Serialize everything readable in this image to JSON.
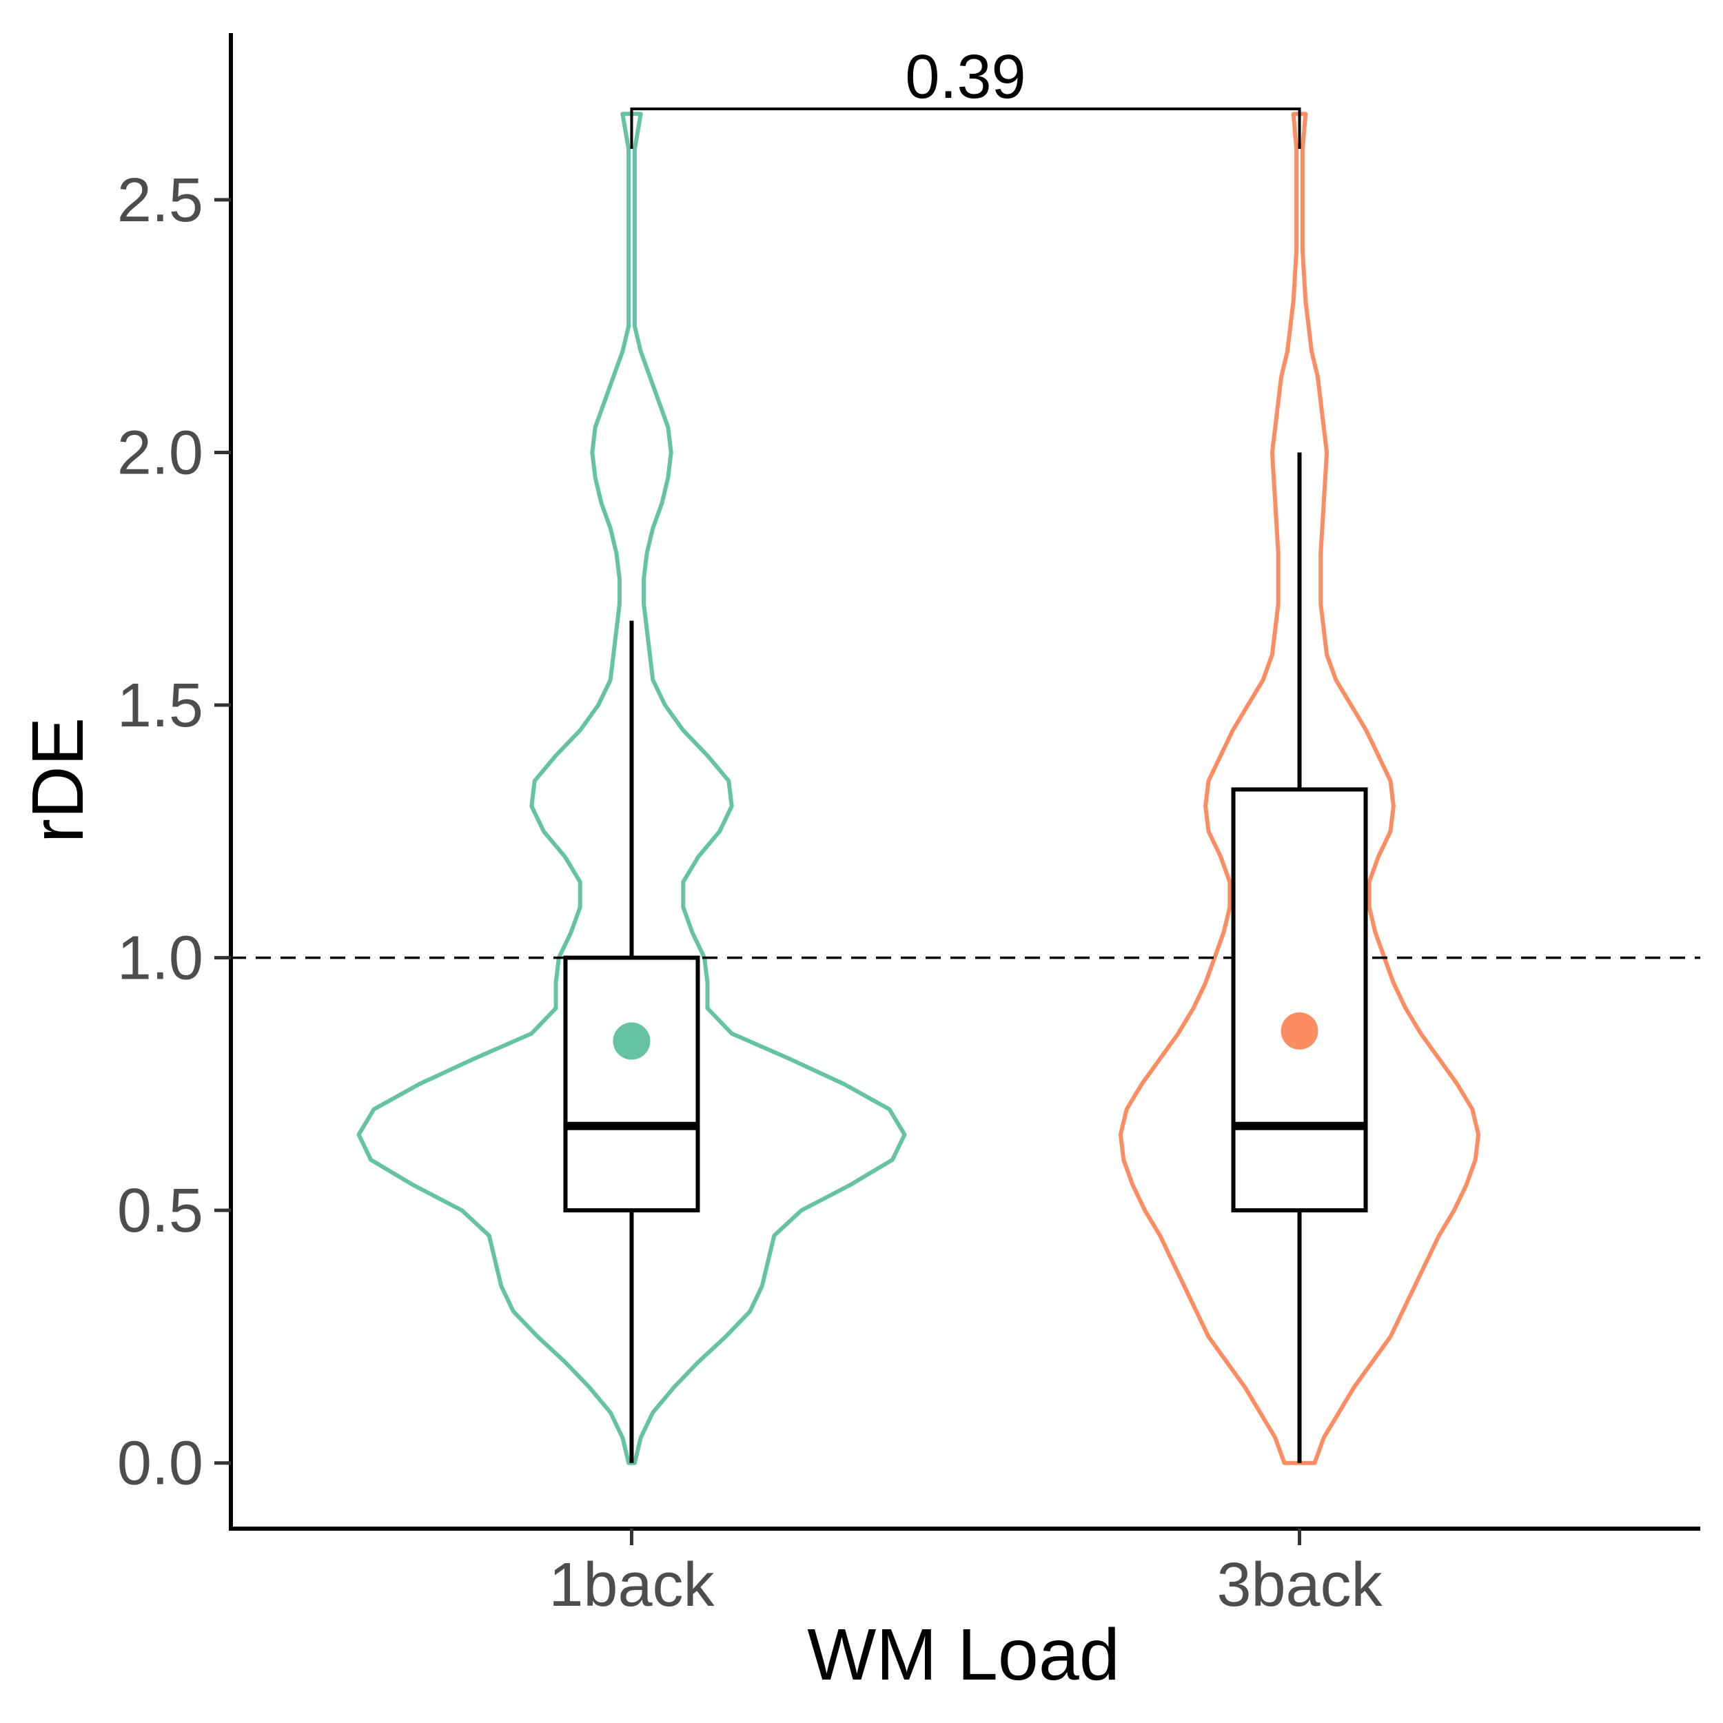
{
  "chart_data": {
    "type": "violin-box",
    "xlabel": "WM Load",
    "ylabel": "rDE",
    "categories": [
      "1back",
      "3back"
    ],
    "ylim": [
      -0.13,
      2.83
    ],
    "yticks": [
      0.0,
      0.5,
      1.0,
      1.5,
      2.0,
      2.5
    ],
    "ytick_labels": [
      "0.0",
      "0.5",
      "1.0",
      "1.5",
      "2.0",
      "2.5"
    ],
    "reference_line": {
      "y": 1.0,
      "style": "dashed"
    },
    "grid": false,
    "legend": "none",
    "groups": [
      {
        "category": "1back",
        "color": "#66c2a5",
        "box": {
          "whisker_low": 0.0,
          "q1": 0.5,
          "median": 0.667,
          "q3": 1.0,
          "whisker_high": 1.667
        },
        "mean": 0.835,
        "violin": [
          [
            0.0,
            0.01
          ],
          [
            0.05,
            0.03
          ],
          [
            0.1,
            0.07
          ],
          [
            0.15,
            0.14
          ],
          [
            0.2,
            0.22
          ],
          [
            0.25,
            0.31
          ],
          [
            0.3,
            0.39
          ],
          [
            0.35,
            0.43
          ],
          [
            0.4,
            0.45
          ],
          [
            0.45,
            0.47
          ],
          [
            0.5,
            0.56
          ],
          [
            0.55,
            0.72
          ],
          [
            0.6,
            0.86
          ],
          [
            0.65,
            0.9
          ],
          [
            0.7,
            0.85
          ],
          [
            0.75,
            0.7
          ],
          [
            0.8,
            0.52
          ],
          [
            0.85,
            0.33
          ],
          [
            0.9,
            0.25
          ],
          [
            0.95,
            0.25
          ],
          [
            1.0,
            0.24
          ],
          [
            1.05,
            0.2
          ],
          [
            1.1,
            0.17
          ],
          [
            1.15,
            0.17
          ],
          [
            1.2,
            0.22
          ],
          [
            1.25,
            0.29
          ],
          [
            1.3,
            0.33
          ],
          [
            1.35,
            0.32
          ],
          [
            1.4,
            0.25
          ],
          [
            1.45,
            0.17
          ],
          [
            1.5,
            0.11
          ],
          [
            1.55,
            0.07
          ],
          [
            1.6,
            0.06
          ],
          [
            1.65,
            0.05
          ],
          [
            1.7,
            0.04
          ],
          [
            1.75,
            0.04
          ],
          [
            1.8,
            0.05
          ],
          [
            1.85,
            0.07
          ],
          [
            1.9,
            0.1
          ],
          [
            1.95,
            0.12
          ],
          [
            2.0,
            0.13
          ],
          [
            2.05,
            0.12
          ],
          [
            2.1,
            0.09
          ],
          [
            2.15,
            0.06
          ],
          [
            2.2,
            0.03
          ],
          [
            2.25,
            0.01
          ],
          [
            2.3,
            0.01
          ],
          [
            2.4,
            0.01
          ],
          [
            2.5,
            0.01
          ],
          [
            2.6,
            0.01
          ],
          [
            2.67,
            0.03
          ]
        ]
      },
      {
        "category": "3back",
        "color": "#fc8d62",
        "box": {
          "whisker_low": 0.0,
          "q1": 0.5,
          "median": 0.667,
          "q3": 1.333,
          "whisker_high": 2.0
        },
        "mean": 0.855,
        "violin": [
          [
            0.0,
            0.05
          ],
          [
            0.05,
            0.08
          ],
          [
            0.1,
            0.13
          ],
          [
            0.15,
            0.18
          ],
          [
            0.2,
            0.24
          ],
          [
            0.25,
            0.3
          ],
          [
            0.3,
            0.34
          ],
          [
            0.35,
            0.38
          ],
          [
            0.4,
            0.42
          ],
          [
            0.45,
            0.46
          ],
          [
            0.5,
            0.51
          ],
          [
            0.55,
            0.55
          ],
          [
            0.6,
            0.58
          ],
          [
            0.65,
            0.59
          ],
          [
            0.7,
            0.57
          ],
          [
            0.75,
            0.52
          ],
          [
            0.8,
            0.46
          ],
          [
            0.85,
            0.4
          ],
          [
            0.9,
            0.35
          ],
          [
            0.95,
            0.31
          ],
          [
            1.0,
            0.28
          ],
          [
            1.05,
            0.25
          ],
          [
            1.1,
            0.23
          ],
          [
            1.15,
            0.23
          ],
          [
            1.2,
            0.26
          ],
          [
            1.25,
            0.3
          ],
          [
            1.3,
            0.31
          ],
          [
            1.35,
            0.3
          ],
          [
            1.4,
            0.26
          ],
          [
            1.45,
            0.22
          ],
          [
            1.5,
            0.17
          ],
          [
            1.55,
            0.12
          ],
          [
            1.6,
            0.09
          ],
          [
            1.7,
            0.07
          ],
          [
            1.8,
            0.07
          ],
          [
            1.9,
            0.08
          ],
          [
            2.0,
            0.09
          ],
          [
            2.05,
            0.08
          ],
          [
            2.1,
            0.07
          ],
          [
            2.15,
            0.06
          ],
          [
            2.2,
            0.04
          ],
          [
            2.3,
            0.02
          ],
          [
            2.4,
            0.01
          ],
          [
            2.5,
            0.01
          ],
          [
            2.6,
            0.01
          ],
          [
            2.67,
            0.02
          ]
        ]
      }
    ],
    "comparison": {
      "groups": [
        "1back",
        "3back"
      ],
      "label": "0.39",
      "y": 2.68
    }
  }
}
